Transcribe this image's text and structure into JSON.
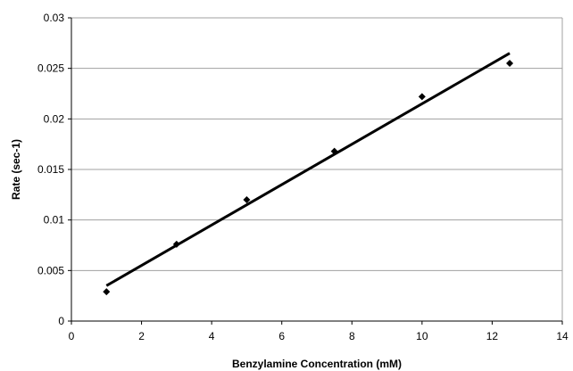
{
  "chart_data": {
    "type": "scatter",
    "title": "",
    "xlabel": "Benzylamine Concentration (mM)",
    "ylabel": "Rate (sec-1)",
    "xlim": [
      0,
      14
    ],
    "ylim": [
      0,
      0.03
    ],
    "x_ticks": [
      0,
      2,
      4,
      6,
      8,
      10,
      12,
      14
    ],
    "y_ticks": [
      0,
      0.005,
      0.01,
      0.015,
      0.02,
      0.025,
      0.03
    ],
    "x_tick_labels": [
      "0",
      "2",
      "4",
      "6",
      "8",
      "10",
      "12",
      "14"
    ],
    "y_tick_labels": [
      "0",
      "0.005",
      "0.01",
      "0.015",
      "0.02",
      "0.025",
      "0.03"
    ],
    "grid": "horizontal",
    "series": [
      {
        "marker": "diamond",
        "points": [
          {
            "x": 1,
            "y": 0.0029
          },
          {
            "x": 3,
            "y": 0.0076
          },
          {
            "x": 5,
            "y": 0.012
          },
          {
            "x": 7.5,
            "y": 0.0168
          },
          {
            "x": 10,
            "y": 0.0222
          },
          {
            "x": 12.5,
            "y": 0.0255
          }
        ]
      }
    ],
    "trendline": {
      "type": "linear",
      "x_start": 1,
      "y_start": 0.0035,
      "x_end": 12.5,
      "y_end": 0.0265
    },
    "colors": {
      "marker": "#000000",
      "trendline": "#000000",
      "grid": "#a0a0a0",
      "axis": "#000000"
    }
  }
}
